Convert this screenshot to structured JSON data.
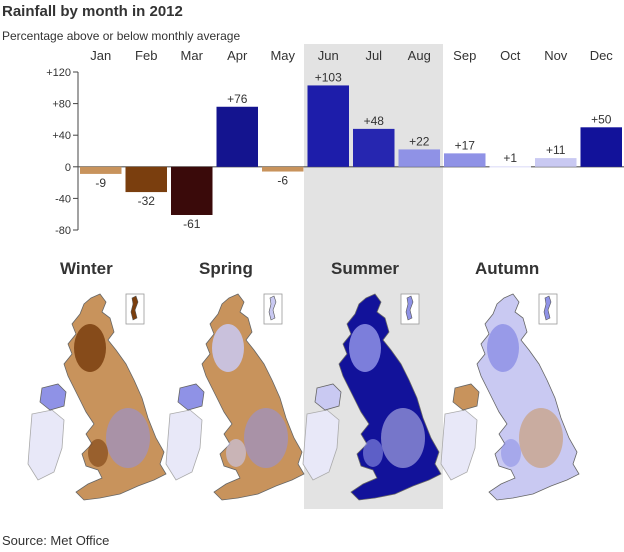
{
  "title": "Rainfall by month in 2012",
  "subtitle": "Percentage above or below monthly average",
  "source": "Source: Met Office",
  "colors": {
    "chart_bg": "#ffffff",
    "summer_highlight": "#e3e3e3",
    "axis": "#444444",
    "gridline": "#999999",
    "dry_light": "#c8935c",
    "dry_mid": "#7a3e0e",
    "dry_dark": "#3a0a0a",
    "wet_light": "#c9c9f2",
    "wet_mid": "#8f92e6",
    "wet_dark": "#12129a",
    "map_outline": "#666666"
  },
  "chart_data": {
    "type": "bar",
    "title": "Rainfall by month in 2012",
    "ylabel": "Percentage above or below monthly average",
    "categories": [
      "Jan",
      "Feb",
      "Mar",
      "Apr",
      "May",
      "Jun",
      "Jul",
      "Aug",
      "Sep",
      "Oct",
      "Nov",
      "Dec"
    ],
    "values": [
      -9,
      -32,
      -61,
      76,
      -6,
      103,
      48,
      22,
      17,
      1,
      11,
      50
    ],
    "value_labels": [
      "-9",
      "-32",
      "-61",
      "+76",
      "-6",
      "+103",
      "+48",
      "+22",
      "+17",
      "+1",
      "+11",
      "+50"
    ],
    "bar_colors": [
      "#c8935c",
      "#7a3e0e",
      "#3a0a0a",
      "#14148f",
      "#c8935c",
      "#1d1daa",
      "#2626b0",
      "#8f92e6",
      "#8f92e6",
      "#e6e6fa",
      "#c9c9f2",
      "#12129a"
    ],
    "yticks": [
      120,
      80,
      40,
      0,
      -40,
      -80
    ],
    "ytick_labels": [
      "+120",
      "+80",
      "+40",
      "0",
      "-40",
      "-80"
    ],
    "ylim": [
      -80,
      120
    ],
    "highlight": "Summer (Jun–Aug)",
    "grid": false,
    "legend": "none"
  },
  "maps": {
    "seasons": [
      "Winter",
      "Spring",
      "Summer",
      "Autumn"
    ]
  }
}
